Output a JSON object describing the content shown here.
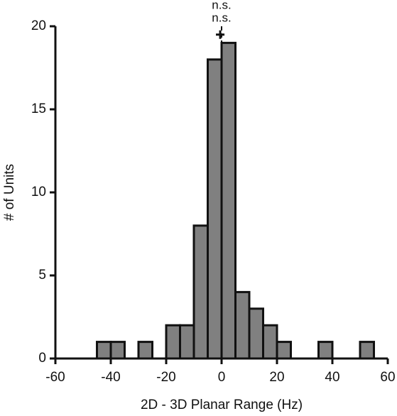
{
  "chart_data": {
    "type": "histogram",
    "xlabel": "2D - 3D Planar Range (Hz)",
    "ylabel": "# of Units",
    "annotations": [
      "n.s.",
      "n.s."
    ],
    "bins": [
      -45,
      -40,
      -35,
      -30,
      -25,
      -20,
      -15,
      -10,
      -5,
      0,
      5,
      10,
      15,
      20,
      25,
      30,
      35,
      40,
      45,
      50,
      55
    ],
    "counts": [
      1,
      1,
      0,
      1,
      0,
      2,
      2,
      8,
      18,
      19,
      4,
      3,
      2,
      1,
      0,
      0,
      1,
      0,
      0,
      1
    ],
    "color": "#808080",
    "vline": 0,
    "markers": [
      {
        "x": -0.5,
        "y": 19.5
      }
    ],
    "xlim": [
      -60,
      60
    ],
    "xticks": [
      -60,
      -40,
      -20,
      0,
      20,
      40,
      60
    ],
    "ylim": [
      0,
      20
    ],
    "yticks": [
      0,
      5,
      10,
      15,
      20
    ]
  }
}
